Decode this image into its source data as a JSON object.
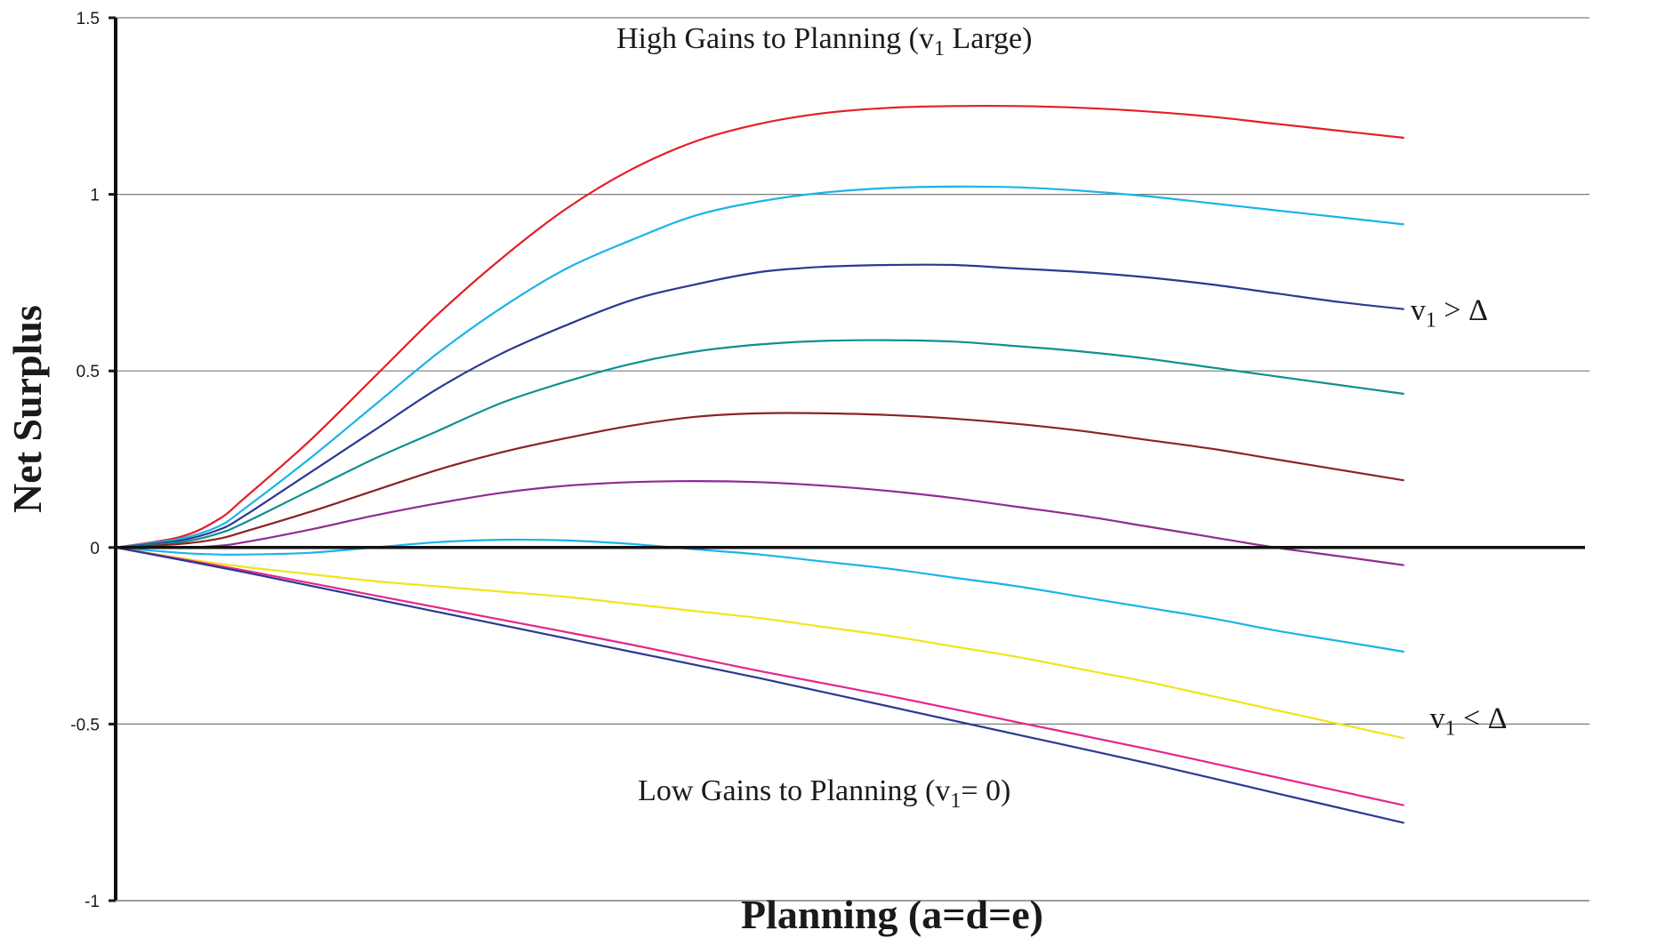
{
  "chart_data": {
    "type": "line",
    "title": "",
    "xlabel": "Planning (a=d=e)",
    "ylabel": "Net Surplus",
    "ylim": [
      -1,
      1.5
    ],
    "xlim": [
      0,
      1.07
    ],
    "yticks": [
      {
        "value": 1.5,
        "label": "1.5"
      },
      {
        "value": 1,
        "label": "1"
      },
      {
        "value": 0.5,
        "label": "0.5"
      },
      {
        "value": 0,
        "label": "0"
      },
      {
        "value": -0.5,
        "label": "-0.5"
      },
      {
        "value": -1,
        "label": "-1"
      }
    ],
    "grid": true,
    "legend": "none",
    "annotations": [
      {
        "id": "high-gains",
        "prefix": "High Gains to Planning (v",
        "sub": "1",
        "suffix": " Large)",
        "x": 0.55,
        "y": 1.415,
        "anchor": "middle"
      },
      {
        "id": "v1-greater",
        "prefix": "v",
        "sub": "1",
        "suffix": " > Δ",
        "x": 1.035,
        "y": 0.645,
        "anchor": "middle"
      },
      {
        "id": "v1-less",
        "prefix": "v",
        "sub": "1",
        "suffix": " < Δ",
        "x": 1.05,
        "y": -0.51,
        "anchor": "middle"
      },
      {
        "id": "low-gains",
        "prefix": "Low Gains to Planning (v",
        "sub": "1",
        "suffix": "= 0)",
        "x": 0.55,
        "y": -0.715,
        "anchor": "middle"
      }
    ],
    "series": [
      {
        "color": "#e41e26",
        "x": [
          0,
          0.05,
          0.08,
          0.1,
          0.15,
          0.2,
          0.25,
          0.3,
          0.35,
          0.4,
          0.45,
          0.5,
          0.55,
          0.6,
          0.65,
          0.7,
          0.75,
          0.8,
          0.85,
          0.9,
          0.95,
          1.0
        ],
        "y": [
          0,
          0.03,
          0.08,
          0.14,
          0.3,
          0.48,
          0.66,
          0.82,
          0.96,
          1.07,
          1.15,
          1.2,
          1.23,
          1.245,
          1.25,
          1.25,
          1.245,
          1.235,
          1.22,
          1.2,
          1.18,
          1.16
        ]
      },
      {
        "color": "#1ab4e8",
        "x": [
          0,
          0.05,
          0.08,
          0.1,
          0.15,
          0.2,
          0.25,
          0.3,
          0.35,
          0.4,
          0.45,
          0.5,
          0.55,
          0.6,
          0.65,
          0.7,
          0.75,
          0.8,
          0.85,
          0.9,
          0.95,
          1.0
        ],
        "y": [
          0,
          0.025,
          0.06,
          0.11,
          0.25,
          0.4,
          0.55,
          0.68,
          0.79,
          0.87,
          0.94,
          0.98,
          1.005,
          1.018,
          1.022,
          1.02,
          1.01,
          0.995,
          0.975,
          0.955,
          0.935,
          0.915
        ]
      },
      {
        "color": "#2b3990",
        "x": [
          0,
          0.05,
          0.08,
          0.1,
          0.15,
          0.2,
          0.25,
          0.3,
          0.35,
          0.4,
          0.45,
          0.5,
          0.55,
          0.6,
          0.65,
          0.7,
          0.75,
          0.8,
          0.85,
          0.9,
          0.95,
          1.0
        ],
        "y": [
          0,
          0.02,
          0.05,
          0.09,
          0.21,
          0.33,
          0.45,
          0.55,
          0.63,
          0.7,
          0.745,
          0.78,
          0.795,
          0.8,
          0.8,
          0.79,
          0.78,
          0.765,
          0.745,
          0.72,
          0.695,
          0.675
        ]
      },
      {
        "color": "#0f8f8f",
        "x": [
          0,
          0.05,
          0.08,
          0.1,
          0.15,
          0.2,
          0.25,
          0.3,
          0.35,
          0.4,
          0.45,
          0.5,
          0.55,
          0.6,
          0.65,
          0.7,
          0.75,
          0.8,
          0.85,
          0.9,
          0.95,
          1.0
        ],
        "y": [
          0,
          0.015,
          0.04,
          0.07,
          0.16,
          0.25,
          0.33,
          0.41,
          0.47,
          0.52,
          0.555,
          0.575,
          0.585,
          0.587,
          0.583,
          0.57,
          0.555,
          0.535,
          0.51,
          0.485,
          0.46,
          0.435
        ]
      },
      {
        "color": "#8b2323",
        "x": [
          0,
          0.05,
          0.08,
          0.1,
          0.15,
          0.2,
          0.25,
          0.3,
          0.35,
          0.4,
          0.45,
          0.5,
          0.55,
          0.6,
          0.65,
          0.7,
          0.75,
          0.8,
          0.85,
          0.9,
          0.95,
          1.0
        ],
        "y": [
          0,
          0.01,
          0.025,
          0.045,
          0.1,
          0.16,
          0.22,
          0.27,
          0.31,
          0.345,
          0.37,
          0.38,
          0.38,
          0.375,
          0.365,
          0.35,
          0.33,
          0.305,
          0.28,
          0.25,
          0.22,
          0.19
        ]
      },
      {
        "color": "#8e2c93",
        "x": [
          0,
          0.05,
          0.08,
          0.1,
          0.15,
          0.2,
          0.25,
          0.3,
          0.35,
          0.4,
          0.45,
          0.5,
          0.55,
          0.6,
          0.65,
          0.7,
          0.75,
          0.8,
          0.85,
          0.9,
          0.95,
          1.0
        ],
        "y": [
          0,
          0.0,
          0.005,
          0.015,
          0.05,
          0.09,
          0.125,
          0.155,
          0.175,
          0.185,
          0.188,
          0.185,
          0.175,
          0.16,
          0.14,
          0.115,
          0.09,
          0.06,
          0.03,
          0.0,
          -0.025,
          -0.05
        ]
      },
      {
        "color": "#1ab4e8",
        "x": [
          0,
          0.05,
          0.08,
          0.1,
          0.15,
          0.2,
          0.25,
          0.3,
          0.35,
          0.4,
          0.45,
          0.5,
          0.55,
          0.6,
          0.65,
          0.7,
          0.75,
          0.8,
          0.85,
          0.9,
          0.95,
          1.0
        ],
        "y": [
          0,
          -0.015,
          -0.02,
          -0.02,
          -0.015,
          0.0,
          0.015,
          0.022,
          0.02,
          0.01,
          -0.005,
          -0.02,
          -0.04,
          -0.06,
          -0.085,
          -0.11,
          -0.14,
          -0.17,
          -0.2,
          -0.235,
          -0.265,
          -0.295
        ]
      },
      {
        "color": "#f2e41b",
        "x": [
          0,
          0.05,
          0.1,
          0.15,
          0.2,
          0.25,
          0.3,
          0.35,
          0.4,
          0.45,
          0.5,
          0.55,
          0.6,
          0.65,
          0.7,
          0.75,
          0.8,
          0.85,
          0.9,
          0.95,
          1.0
        ],
        "y": [
          0,
          -0.03,
          -0.055,
          -0.075,
          -0.095,
          -0.11,
          -0.125,
          -0.14,
          -0.16,
          -0.18,
          -0.2,
          -0.225,
          -0.25,
          -0.28,
          -0.31,
          -0.345,
          -0.38,
          -0.42,
          -0.46,
          -0.5,
          -0.54
        ]
      },
      {
        "color": "#e6268c",
        "x": [
          0,
          0.1,
          0.2,
          0.3,
          0.4,
          0.5,
          0.6,
          0.7,
          0.8,
          0.9,
          1.0
        ],
        "y": [
          0,
          -0.065,
          -0.135,
          -0.205,
          -0.275,
          -0.35,
          -0.42,
          -0.495,
          -0.57,
          -0.65,
          -0.73
        ]
      },
      {
        "color": "#2b3990",
        "x": [
          0,
          0.1,
          0.2,
          0.3,
          0.4,
          0.5,
          0.6,
          0.7,
          0.8,
          0.9,
          1.0
        ],
        "y": [
          0,
          -0.07,
          -0.145,
          -0.22,
          -0.295,
          -0.37,
          -0.45,
          -0.53,
          -0.61,
          -0.695,
          -0.78
        ]
      }
    ]
  }
}
